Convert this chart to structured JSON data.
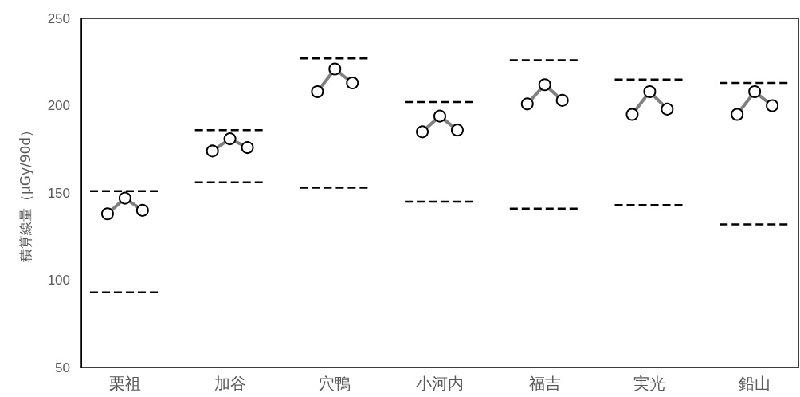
{
  "chart_data": {
    "type": "line",
    "ylabel": "積算線量（μGy/90d）",
    "categories": [
      null,
      null,
      "栗祖",
      null,
      null,
      null,
      null,
      null,
      "加谷",
      null,
      null,
      null,
      null,
      null,
      "穴鴨",
      null,
      null,
      null,
      null,
      null,
      "小河内",
      null,
      null,
      null,
      null,
      null,
      "福吉",
      null,
      null,
      null,
      null,
      null,
      "実光",
      null,
      null,
      null,
      null,
      null,
      "鉛山",
      null,
      null
    ],
    "ylim": [
      50,
      250
    ],
    "yticks": [
      50,
      100,
      150,
      200,
      250
    ],
    "grid": false,
    "series": [
      {
        "color": "#808080",
        "marker": "circle",
        "line_style": "solid",
        "values": [
          null,
          138,
          147,
          140,
          null,
          null,
          null,
          174,
          181,
          176,
          null,
          null,
          null,
          208,
          221,
          213,
          null,
          null,
          null,
          185,
          194,
          186,
          null,
          null,
          null,
          201,
          212,
          203,
          null,
          null,
          null,
          195,
          208,
          198,
          null,
          null,
          null,
          195,
          208,
          200,
          null
        ]
      },
      {
        "color": "#000000",
        "marker": "none",
        "line_style": "dashed",
        "values": [
          151,
          151,
          151,
          151,
          151,
          null,
          186,
          186,
          186,
          186,
          186,
          null,
          227,
          227,
          227,
          227,
          227,
          null,
          202,
          202,
          202,
          202,
          202,
          null,
          226,
          226,
          226,
          226,
          226,
          null,
          215,
          215,
          215,
          215,
          215,
          null,
          213,
          213,
          213,
          213,
          213
        ]
      },
      {
        "color": "#000000",
        "marker": "none",
        "line_style": "dashed",
        "values": [
          93,
          93,
          93,
          93,
          93,
          null,
          156,
          156,
          156,
          156,
          156,
          null,
          153,
          153,
          153,
          153,
          153,
          null,
          145,
          145,
          145,
          145,
          145,
          null,
          141,
          141,
          141,
          141,
          141,
          null,
          143,
          143,
          143,
          143,
          143,
          null,
          132,
          132,
          132,
          132,
          132
        ]
      }
    ]
  }
}
